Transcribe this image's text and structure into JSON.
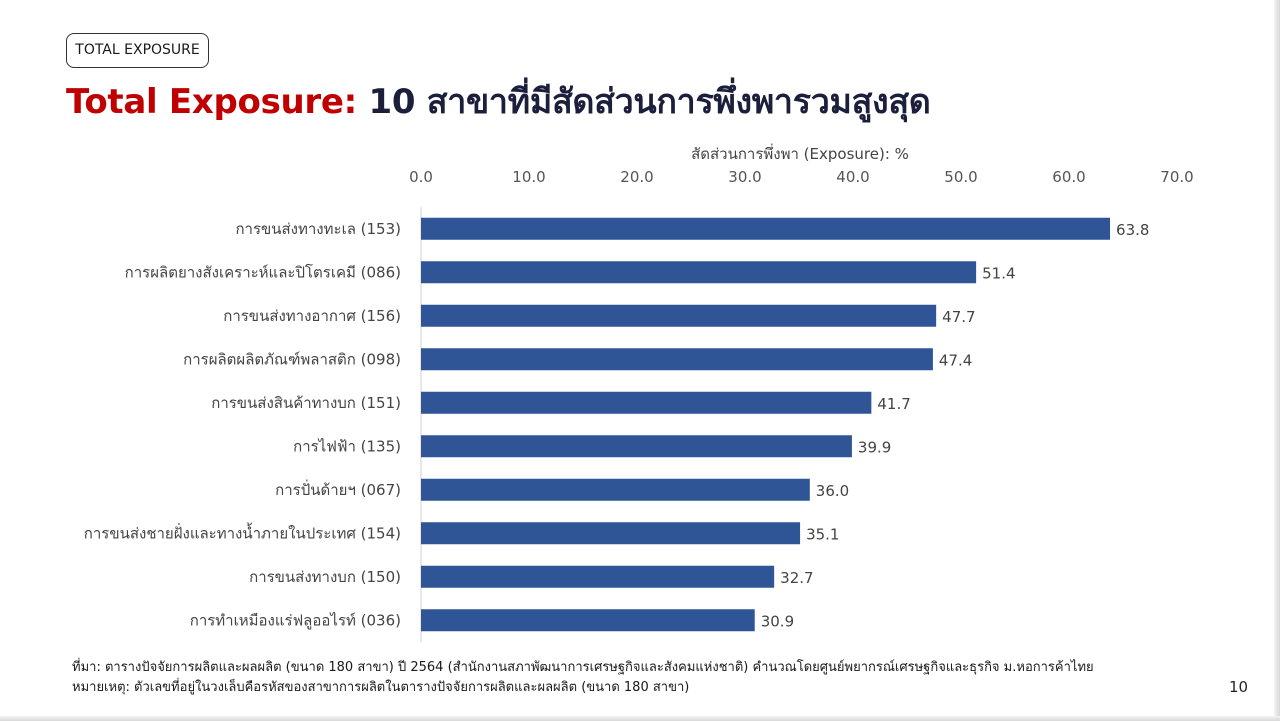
{
  "tag_label": "TOTAL EXPOSURE",
  "title": {
    "red": "Total Exposure:",
    "dark": "10 สาขาที่มีสัดส่วนการพึ่งพารวมสูงสุด"
  },
  "colors": {
    "title_red": "#c00000",
    "title_dark": "#1b1f3b",
    "bar": "#2f5597"
  },
  "chart_data": {
    "type": "bar",
    "orientation": "horizontal",
    "xlabel": "สัดส่วนการพึ่งพา (Exposure): %",
    "xlim": [
      0,
      70
    ],
    "x_ticks": [
      "0.0",
      "10.0",
      "20.0",
      "30.0",
      "40.0",
      "50.0",
      "60.0",
      "70.0"
    ],
    "x_axis_position": "top",
    "grid": false,
    "categories": [
      "การขนส่งทางทะเล (153)",
      "การผลิตยางสังเคราะห์และปิโตรเคมี (086)",
      "การขนส่งทางอากาศ (156)",
      "การผลิตผลิตภัณฑ์พลาสติก (098)",
      "การขนส่งสินค้าทางบก (151)",
      "การไฟฟ้า (135)",
      "การปั่นด้ายฯ (067)",
      "การขนส่งชายฝั่งและทางน้ำภายในประเทศ (154)",
      "การขนส่งทางบก (150)",
      "การทำเหมืองแร่ฟลูออไรท์ (036)"
    ],
    "values": [
      63.8,
      51.4,
      47.7,
      47.4,
      41.7,
      39.9,
      36.0,
      35.1,
      32.7,
      30.9
    ],
    "value_labels": [
      "63.8",
      "51.4",
      "47.7",
      "47.4",
      "41.7",
      "39.9",
      "36.0",
      "35.1",
      "32.7",
      "30.9"
    ]
  },
  "footnotes": {
    "source": "ที่มา: ตารางปัจจัยการผลิตและผลผลิต (ขนาด 180 สาขา) ปี 2564 (สำนักงานสภาพัฒนาการเศรษฐกิจและสังคมแห่งชาติ) คำนวณโดยศูนย์พยากรณ์เศรษฐกิจและธุรกิจ ม.หอการค้าไทย",
    "note": "หมายเหตุ: ตัวเลขที่อยู่ในวงเล็บคือรหัสของสาขาการผลิตในตารางปัจจัยการผลิตและผลผลิต (ขนาด 180 สาขา)"
  },
  "page_number": "10"
}
